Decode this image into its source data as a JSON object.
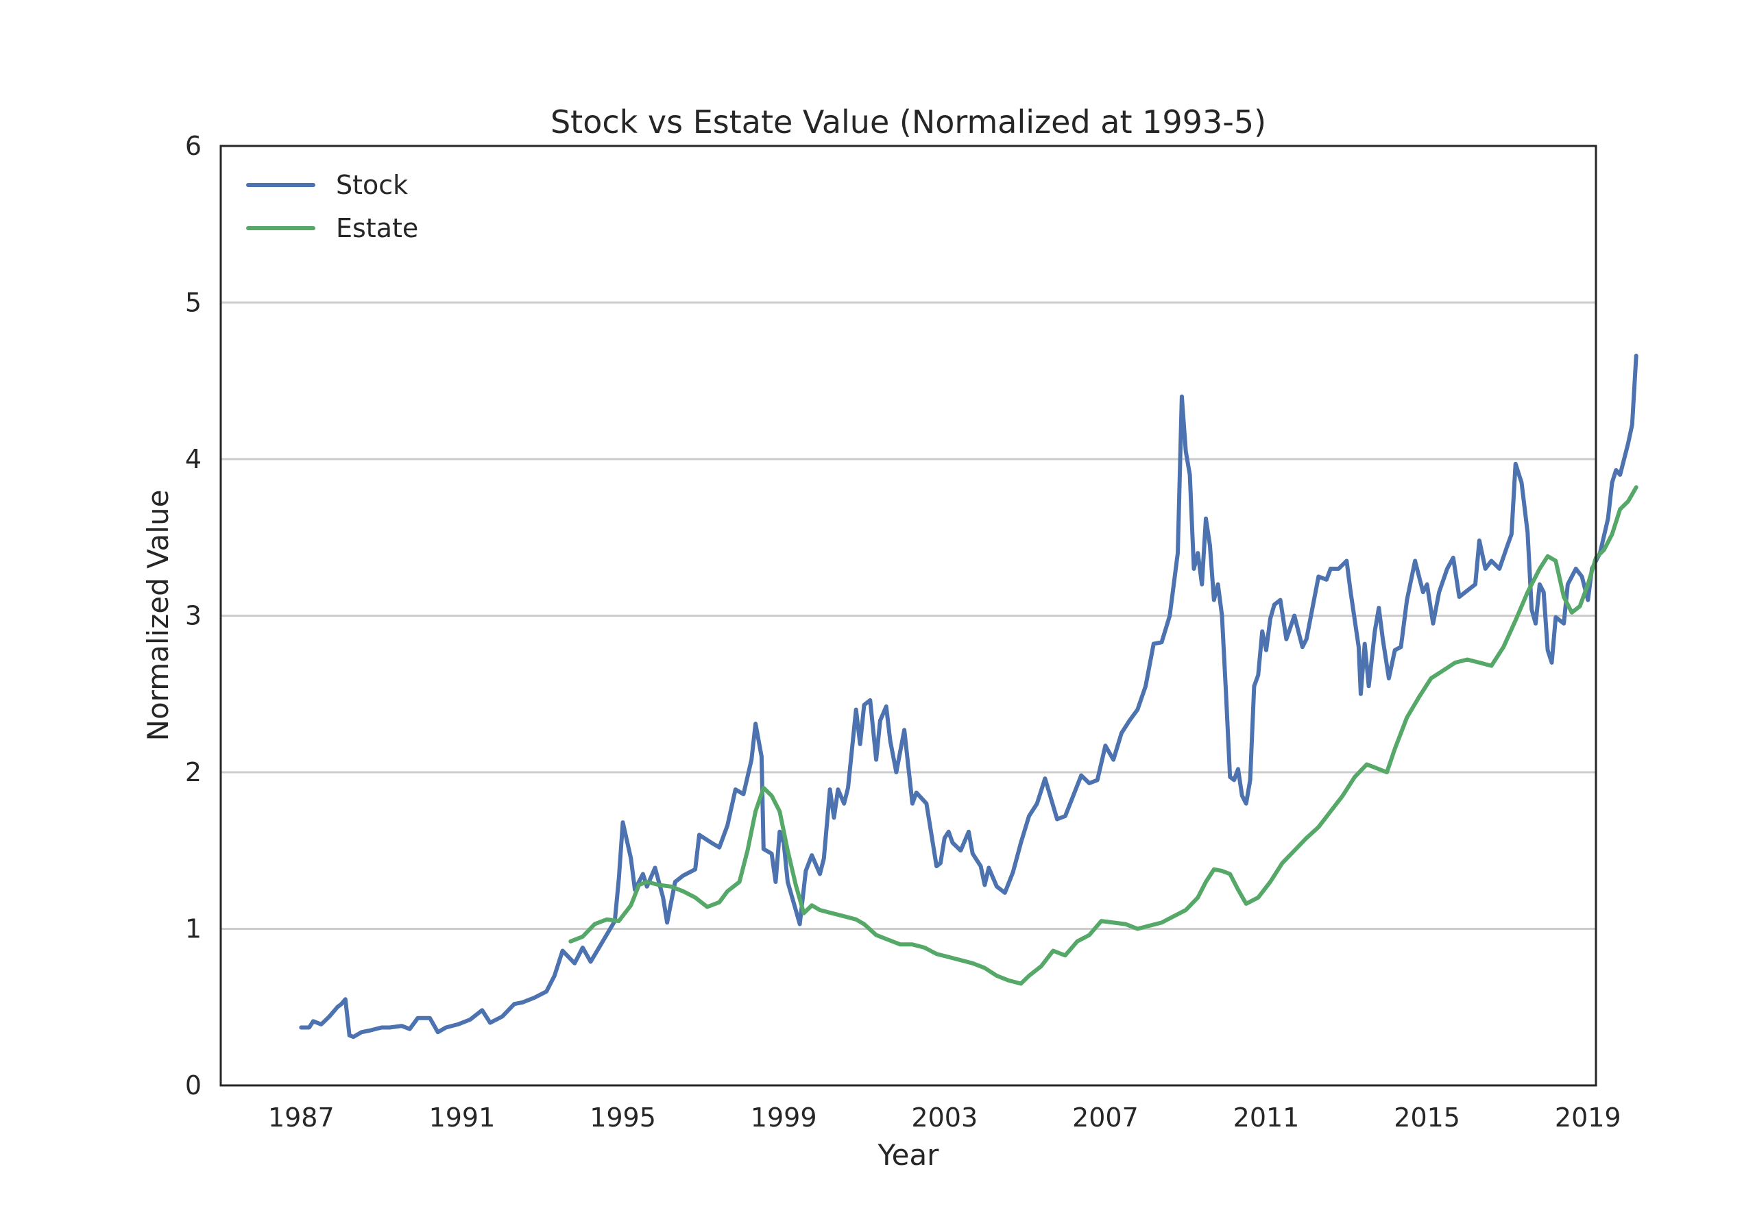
{
  "chart_data": {
    "type": "line",
    "title": "Stock vs Estate Value (Normalized at 1993-5)",
    "xlabel": "Year",
    "ylabel": "Normalized Value",
    "xlim": [
      1985.0,
      2019.2
    ],
    "ylim": [
      0,
      6
    ],
    "xticks": [
      "1987",
      "1991",
      "1995",
      "1999",
      "2003",
      "2007",
      "2011",
      "2015",
      "2019"
    ],
    "yticks": [
      "0",
      "1",
      "2",
      "3",
      "4",
      "5",
      "6"
    ],
    "grid": "horizontal",
    "legend_position": "top-left",
    "series": [
      {
        "name": "Stock",
        "color": "#4c72b0",
        "points": [
          [
            1987.0,
            0.37
          ],
          [
            1987.2,
            0.37
          ],
          [
            1987.3,
            0.41
          ],
          [
            1987.5,
            0.39
          ],
          [
            1987.7,
            0.44
          ],
          [
            1987.9,
            0.5
          ],
          [
            1988.0,
            0.52
          ],
          [
            1988.1,
            0.55
          ],
          [
            1988.2,
            0.32
          ],
          [
            1988.3,
            0.31
          ],
          [
            1988.5,
            0.34
          ],
          [
            1988.7,
            0.35
          ],
          [
            1989.0,
            0.37
          ],
          [
            1989.2,
            0.37
          ],
          [
            1989.5,
            0.38
          ],
          [
            1989.7,
            0.36
          ],
          [
            1989.9,
            0.43
          ],
          [
            1990.2,
            0.43
          ],
          [
            1990.4,
            0.34
          ],
          [
            1990.6,
            0.37
          ],
          [
            1990.9,
            0.39
          ],
          [
            1991.2,
            0.42
          ],
          [
            1991.5,
            0.48
          ],
          [
            1991.7,
            0.4
          ],
          [
            1992.0,
            0.44
          ],
          [
            1992.3,
            0.52
          ],
          [
            1992.5,
            0.53
          ],
          [
            1992.8,
            0.56
          ],
          [
            1993.1,
            0.6
          ],
          [
            1993.3,
            0.7
          ],
          [
            1993.5,
            0.86
          ],
          [
            1993.8,
            0.78
          ],
          [
            1994.0,
            0.88
          ],
          [
            1994.2,
            0.79
          ],
          [
            1994.5,
            0.92
          ],
          [
            1994.8,
            1.05
          ],
          [
            1994.9,
            1.32
          ],
          [
            1995.0,
            1.68
          ],
          [
            1995.2,
            1.45
          ],
          [
            1995.3,
            1.25
          ],
          [
            1995.5,
            1.35
          ],
          [
            1995.6,
            1.27
          ],
          [
            1995.8,
            1.39
          ],
          [
            1996.0,
            1.2
          ],
          [
            1996.1,
            1.04
          ],
          [
            1996.3,
            1.3
          ],
          [
            1996.5,
            1.34
          ],
          [
            1996.8,
            1.38
          ],
          [
            1996.9,
            1.6
          ],
          [
            1997.2,
            1.55
          ],
          [
            1997.4,
            1.52
          ],
          [
            1997.6,
            1.66
          ],
          [
            1997.8,
            1.89
          ],
          [
            1998.0,
            1.86
          ],
          [
            1998.2,
            2.08
          ],
          [
            1998.3,
            2.31
          ],
          [
            1998.45,
            2.1
          ],
          [
            1998.5,
            1.51
          ],
          [
            1998.7,
            1.48
          ],
          [
            1998.8,
            1.3
          ],
          [
            1998.9,
            1.62
          ],
          [
            1999.0,
            1.55
          ],
          [
            1999.1,
            1.3
          ],
          [
            1999.3,
            1.12
          ],
          [
            1999.4,
            1.03
          ],
          [
            1999.55,
            1.37
          ],
          [
            1999.7,
            1.47
          ],
          [
            1999.9,
            1.35
          ],
          [
            2000.0,
            1.45
          ],
          [
            2000.15,
            1.89
          ],
          [
            2000.25,
            1.71
          ],
          [
            2000.35,
            1.89
          ],
          [
            2000.5,
            1.8
          ],
          [
            2000.6,
            1.9
          ],
          [
            2000.8,
            2.4
          ],
          [
            2000.9,
            2.18
          ],
          [
            2001.0,
            2.43
          ],
          [
            2001.15,
            2.46
          ],
          [
            2001.3,
            2.08
          ],
          [
            2001.4,
            2.33
          ],
          [
            2001.55,
            2.42
          ],
          [
            2001.65,
            2.2
          ],
          [
            2001.8,
            2.0
          ],
          [
            2002.0,
            2.27
          ],
          [
            2002.2,
            1.8
          ],
          [
            2002.3,
            1.87
          ],
          [
            2002.55,
            1.8
          ],
          [
            2002.8,
            1.4
          ],
          [
            2002.9,
            1.42
          ],
          [
            2003.0,
            1.58
          ],
          [
            2003.1,
            1.62
          ],
          [
            2003.2,
            1.55
          ],
          [
            2003.4,
            1.5
          ],
          [
            2003.6,
            1.62
          ],
          [
            2003.7,
            1.48
          ],
          [
            2003.9,
            1.4
          ],
          [
            2004.0,
            1.28
          ],
          [
            2004.1,
            1.39
          ],
          [
            2004.3,
            1.27
          ],
          [
            2004.5,
            1.23
          ],
          [
            2004.7,
            1.36
          ],
          [
            2004.9,
            1.55
          ],
          [
            2005.1,
            1.72
          ],
          [
            2005.3,
            1.8
          ],
          [
            2005.5,
            1.96
          ],
          [
            2005.8,
            1.7
          ],
          [
            2006.0,
            1.72
          ],
          [
            2006.2,
            1.85
          ],
          [
            2006.4,
            1.98
          ],
          [
            2006.6,
            1.93
          ],
          [
            2006.8,
            1.95
          ],
          [
            2007.0,
            2.17
          ],
          [
            2007.2,
            2.08
          ],
          [
            2007.4,
            2.25
          ],
          [
            2007.6,
            2.33
          ],
          [
            2007.8,
            2.4
          ],
          [
            2008.0,
            2.55
          ],
          [
            2008.2,
            2.82
          ],
          [
            2008.4,
            2.83
          ],
          [
            2008.6,
            3.0
          ],
          [
            2008.8,
            3.4
          ],
          [
            2008.9,
            4.4
          ],
          [
            2009.0,
            4.05
          ],
          [
            2009.1,
            3.9
          ],
          [
            2009.2,
            3.3
          ],
          [
            2009.3,
            3.4
          ],
          [
            2009.4,
            3.2
          ],
          [
            2009.5,
            3.62
          ],
          [
            2009.6,
            3.45
          ],
          [
            2009.7,
            3.1
          ],
          [
            2009.8,
            3.2
          ],
          [
            2009.9,
            3.0
          ],
          [
            2010.0,
            2.5
          ],
          [
            2010.1,
            1.97
          ],
          [
            2010.2,
            1.95
          ],
          [
            2010.3,
            2.02
          ],
          [
            2010.4,
            1.85
          ],
          [
            2010.5,
            1.8
          ],
          [
            2010.6,
            1.95
          ],
          [
            2010.7,
            2.55
          ],
          [
            2010.8,
            2.62
          ],
          [
            2010.9,
            2.9
          ],
          [
            2011.0,
            2.78
          ],
          [
            2011.1,
            2.98
          ],
          [
            2011.2,
            3.07
          ],
          [
            2011.35,
            3.1
          ],
          [
            2011.5,
            2.85
          ],
          [
            2011.7,
            3.0
          ],
          [
            2011.9,
            2.8
          ],
          [
            2012.0,
            2.85
          ],
          [
            2012.15,
            3.05
          ],
          [
            2012.3,
            3.25
          ],
          [
            2012.5,
            3.23
          ],
          [
            2012.6,
            3.3
          ],
          [
            2012.8,
            3.3
          ],
          [
            2013.0,
            3.35
          ],
          [
            2013.1,
            3.15
          ],
          [
            2013.3,
            2.8
          ],
          [
            2013.35,
            2.5
          ],
          [
            2013.45,
            2.82
          ],
          [
            2013.55,
            2.55
          ],
          [
            2013.7,
            2.9
          ],
          [
            2013.8,
            3.05
          ],
          [
            2013.9,
            2.85
          ],
          [
            2014.05,
            2.6
          ],
          [
            2014.2,
            2.78
          ],
          [
            2014.35,
            2.8
          ],
          [
            2014.5,
            3.1
          ],
          [
            2014.7,
            3.35
          ],
          [
            2014.9,
            3.15
          ],
          [
            2015.0,
            3.2
          ],
          [
            2015.15,
            2.95
          ],
          [
            2015.3,
            3.15
          ],
          [
            2015.5,
            3.3
          ],
          [
            2015.65,
            3.37
          ],
          [
            2015.8,
            3.12
          ],
          [
            2016.0,
            3.16
          ],
          [
            2016.2,
            3.2
          ],
          [
            2016.3,
            3.48
          ],
          [
            2016.45,
            3.3
          ],
          [
            2016.6,
            3.35
          ],
          [
            2016.8,
            3.3
          ],
          [
            2017.0,
            3.45
          ],
          [
            2017.1,
            3.52
          ],
          [
            2017.2,
            3.97
          ],
          [
            2017.35,
            3.85
          ],
          [
            2017.5,
            3.53
          ],
          [
            2017.6,
            3.04
          ],
          [
            2017.7,
            2.95
          ],
          [
            2017.8,
            3.2
          ],
          [
            2017.9,
            3.15
          ],
          [
            2018.0,
            2.78
          ],
          [
            2018.1,
            2.7
          ],
          [
            2018.2,
            2.99
          ],
          [
            2018.4,
            2.95
          ],
          [
            2018.5,
            3.2
          ],
          [
            2018.7,
            3.3
          ],
          [
            2018.85,
            3.25
          ],
          [
            2019.0,
            3.1
          ],
          [
            2019.1,
            3.3
          ],
          [
            2019.3,
            3.4
          ],
          [
            2019.5,
            3.62
          ],
          [
            2019.6,
            3.85
          ],
          [
            2019.7,
            3.93
          ],
          [
            2019.8,
            3.9
          ],
          [
            2020.0,
            4.1
          ],
          [
            2020.1,
            4.22
          ],
          [
            2020.2,
            4.66
          ]
        ]
      },
      {
        "name": "Estate",
        "color": "#55a868",
        "points": [
          [
            1993.7,
            0.92
          ],
          [
            1994.0,
            0.95
          ],
          [
            1994.3,
            1.03
          ],
          [
            1994.6,
            1.06
          ],
          [
            1994.9,
            1.05
          ],
          [
            1995.2,
            1.15
          ],
          [
            1995.4,
            1.28
          ],
          [
            1995.6,
            1.3
          ],
          [
            1995.9,
            1.28
          ],
          [
            1996.2,
            1.27
          ],
          [
            1996.5,
            1.24
          ],
          [
            1996.8,
            1.2
          ],
          [
            1997.1,
            1.14
          ],
          [
            1997.4,
            1.17
          ],
          [
            1997.6,
            1.24
          ],
          [
            1997.9,
            1.3
          ],
          [
            1998.1,
            1.5
          ],
          [
            1998.3,
            1.75
          ],
          [
            1998.5,
            1.9
          ],
          [
            1998.7,
            1.85
          ],
          [
            1998.9,
            1.75
          ],
          [
            1999.1,
            1.5
          ],
          [
            1999.3,
            1.28
          ],
          [
            1999.5,
            1.1
          ],
          [
            1999.7,
            1.15
          ],
          [
            1999.9,
            1.12
          ],
          [
            2000.2,
            1.1
          ],
          [
            2000.5,
            1.08
          ],
          [
            2000.8,
            1.06
          ],
          [
            2001.0,
            1.03
          ],
          [
            2001.3,
            0.96
          ],
          [
            2001.6,
            0.93
          ],
          [
            2001.9,
            0.9
          ],
          [
            2002.2,
            0.9
          ],
          [
            2002.5,
            0.88
          ],
          [
            2002.8,
            0.84
          ],
          [
            2003.1,
            0.82
          ],
          [
            2003.4,
            0.8
          ],
          [
            2003.7,
            0.78
          ],
          [
            2004.0,
            0.75
          ],
          [
            2004.3,
            0.7
          ],
          [
            2004.6,
            0.67
          ],
          [
            2004.9,
            0.65
          ],
          [
            2005.1,
            0.7
          ],
          [
            2005.4,
            0.76
          ],
          [
            2005.7,
            0.86
          ],
          [
            2006.0,
            0.83
          ],
          [
            2006.3,
            0.92
          ],
          [
            2006.6,
            0.96
          ],
          [
            2006.9,
            1.05
          ],
          [
            2007.2,
            1.04
          ],
          [
            2007.5,
            1.03
          ],
          [
            2007.8,
            1.0
          ],
          [
            2008.1,
            1.02
          ],
          [
            2008.4,
            1.04
          ],
          [
            2008.7,
            1.08
          ],
          [
            2009.0,
            1.12
          ],
          [
            2009.3,
            1.2
          ],
          [
            2009.5,
            1.3
          ],
          [
            2009.7,
            1.38
          ],
          [
            2009.9,
            1.37
          ],
          [
            2010.1,
            1.35
          ],
          [
            2010.3,
            1.25
          ],
          [
            2010.5,
            1.16
          ],
          [
            2010.8,
            1.2
          ],
          [
            2011.1,
            1.3
          ],
          [
            2011.4,
            1.42
          ],
          [
            2011.7,
            1.5
          ],
          [
            2012.0,
            1.58
          ],
          [
            2012.3,
            1.65
          ],
          [
            2012.6,
            1.75
          ],
          [
            2012.9,
            1.85
          ],
          [
            2013.2,
            1.97
          ],
          [
            2013.5,
            2.05
          ],
          [
            2013.7,
            2.03
          ],
          [
            2014.0,
            2.0
          ],
          [
            2014.2,
            2.15
          ],
          [
            2014.5,
            2.35
          ],
          [
            2014.8,
            2.48
          ],
          [
            2015.1,
            2.6
          ],
          [
            2015.4,
            2.65
          ],
          [
            2015.7,
            2.7
          ],
          [
            2016.0,
            2.72
          ],
          [
            2016.3,
            2.7
          ],
          [
            2016.6,
            2.68
          ],
          [
            2016.9,
            2.8
          ],
          [
            2017.2,
            2.97
          ],
          [
            2017.5,
            3.15
          ],
          [
            2017.8,
            3.3
          ],
          [
            2018.0,
            3.38
          ],
          [
            2018.2,
            3.35
          ],
          [
            2018.4,
            3.12
          ],
          [
            2018.6,
            3.02
          ],
          [
            2018.8,
            3.06
          ],
          [
            2019.0,
            3.2
          ],
          [
            2019.2,
            3.37
          ],
          [
            2019.4,
            3.42
          ],
          [
            2019.6,
            3.52
          ],
          [
            2019.8,
            3.68
          ],
          [
            2020.0,
            3.73
          ],
          [
            2020.2,
            3.82
          ]
        ]
      }
    ]
  }
}
